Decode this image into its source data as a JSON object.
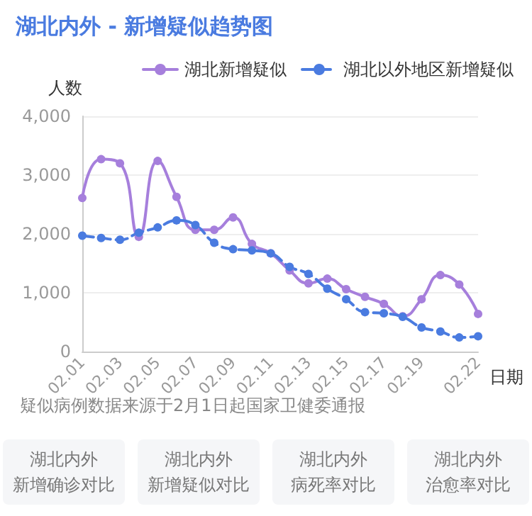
{
  "chart_data": {
    "type": "line",
    "title": "湖北内外 - 新增疑似趋势图",
    "ylabel": "人数",
    "xlabel": "日期",
    "categories": [
      "02.01",
      null,
      "02.03",
      null,
      "02.05",
      null,
      "02.07",
      null,
      "02.09",
      null,
      "02.11",
      null,
      "02.13",
      null,
      "02.15",
      null,
      "02.17",
      null,
      "02.19",
      null,
      null,
      "02.22"
    ],
    "series": [
      {
        "name": "湖北新增疑似",
        "color": "#a67fdc",
        "line_style": "solid",
        "values": [
          2610,
          3270,
          3200,
          1950,
          3240,
          2630,
          2070,
          2070,
          2280,
          1830,
          1670,
          1380,
          1160,
          1240,
          1060,
          930,
          810,
          600,
          890,
          1300,
          1140,
          640
        ]
      },
      {
        "name": "湖北以外地区新增疑似",
        "color": "#4a7be0",
        "line_style": "dashed",
        "values": [
          1970,
          1930,
          1900,
          2020,
          2110,
          2230,
          2150,
          1850,
          1740,
          1720,
          1670,
          1440,
          1320,
          1070,
          890,
          670,
          650,
          590,
          410,
          340,
          240,
          260
        ]
      }
    ],
    "ylim": [
      0,
      4000
    ],
    "yticks": [
      0,
      {
        "value": 1000,
        "label": "1,000"
      },
      {
        "value": 2000,
        "label": "2,000"
      },
      {
        "value": 3000,
        "label": "3,000"
      },
      {
        "value": 4000,
        "label": "4,000"
      }
    ],
    "grid": "y",
    "legend": "top right",
    "marker": "circle",
    "annotations": [
      "疑似病例数据来源于2月1日起国家卫健委通报",
      "湖北内外",
      "新增确诊对比",
      "湖北内外",
      "新增疑似对比",
      "湖北内外",
      "病死率对比",
      "湖北内外",
      "治愈率对比"
    ]
  }
}
